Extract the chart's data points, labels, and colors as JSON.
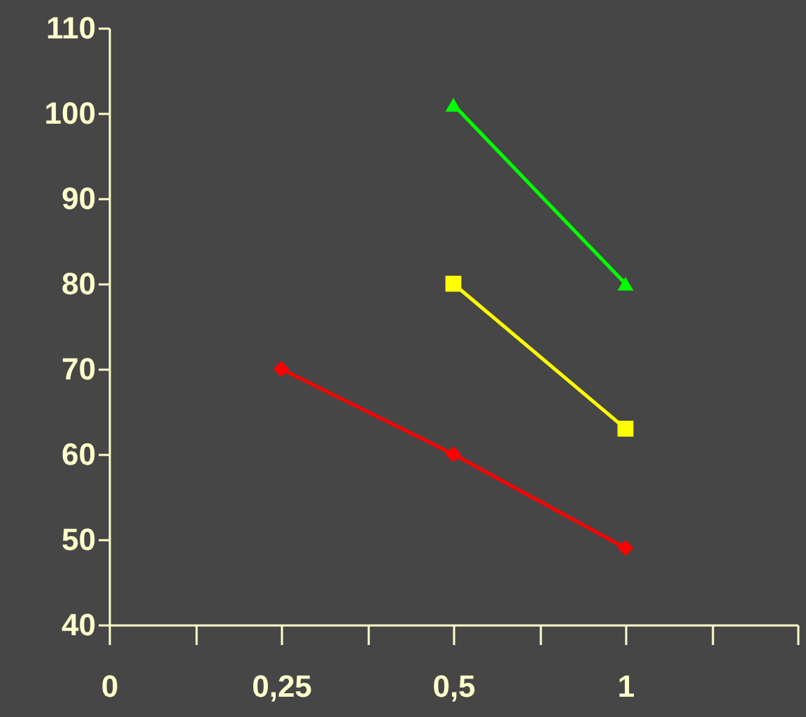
{
  "chart_data": {
    "type": "line",
    "categories": [
      "0",
      "0,25",
      "0,5",
      "1",
      null
    ],
    "series": [
      {
        "color": "#ff0000",
        "marker": "diamond",
        "values": [
          null,
          70,
          60,
          49,
          null
        ]
      },
      {
        "color": "#ffff00",
        "marker": "square",
        "values": [
          null,
          null,
          80,
          63,
          null
        ]
      },
      {
        "color": "#00ff00",
        "marker": "triangle",
        "values": [
          null,
          null,
          101,
          80,
          null
        ]
      }
    ],
    "ylim": [
      40,
      110
    ],
    "yticks": [
      40,
      50,
      60,
      70,
      80,
      90,
      100,
      110
    ],
    "grid": false,
    "line_style": "solid"
  }
}
